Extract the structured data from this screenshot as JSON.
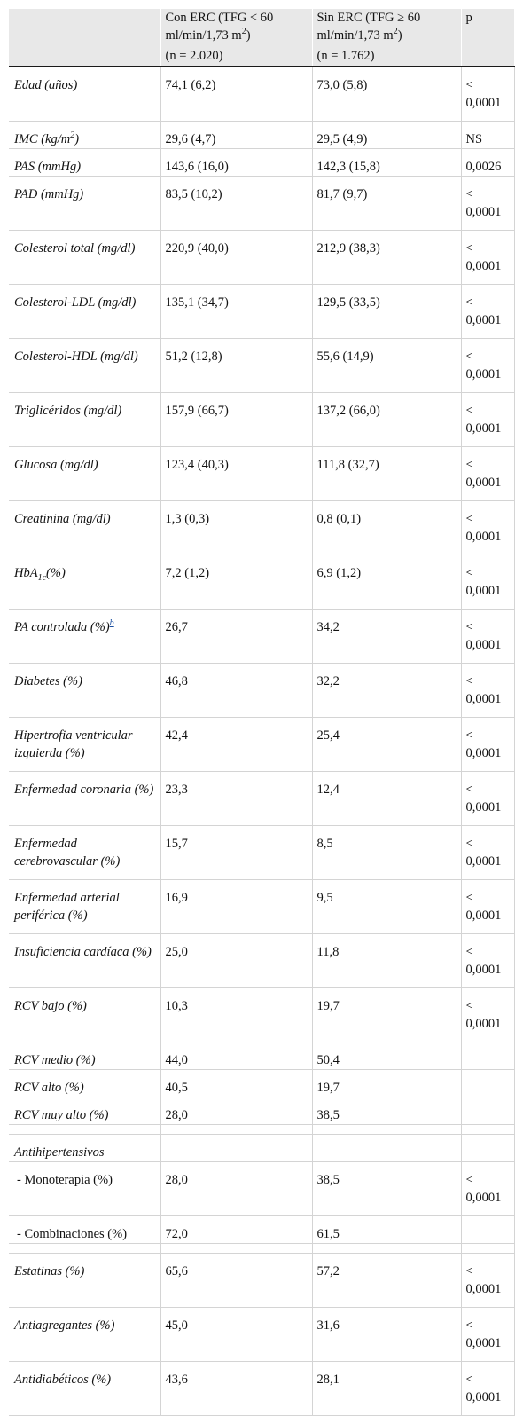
{
  "header": {
    "col1": "",
    "col2_line1": "Con ERC (TFG < 60 ml/min/1,73 m",
    "col2_sup": "2",
    "col2_line1_end": ")",
    "col2_n": "(n = 2.020)",
    "col3_line1": "Sin ERC (TFG ≥ 60 ml/min/1,73 m",
    "col3_sup": "2",
    "col3_line1_end": ")",
    "col3_n": "(n = 1.762)",
    "col4": "p"
  },
  "rows": [
    {
      "label": "Edad (años)",
      "a": "74,1 (6,2)",
      "b": "73,0 (5,8)",
      "p": "< 0,0001"
    },
    {
      "label": "IMC (kg/m",
      "label_sup": "2",
      "label_end": ")",
      "a": "29,6 (4,7)",
      "b": "29,5 (4,9)",
      "p": "NS"
    },
    {
      "label": "PAS (mmHg)",
      "a": "143,6 (16,0)",
      "b": "142,3 (15,8)",
      "p": "0,0026"
    },
    {
      "label": "PAD (mmHg)",
      "a": "83,5 (10,2)",
      "b": "81,7 (9,7)",
      "p": "< 0,0001"
    },
    {
      "label": "Colesterol total (mg/dl)",
      "a": "220,9 (40,0)",
      "b": "212,9 (38,3)",
      "p": "< 0,0001"
    },
    {
      "label": "Colesterol-LDL (mg/dl)",
      "a": "135,1 (34,7)",
      "b": "129,5 (33,5)",
      "p": "< 0,0001"
    },
    {
      "label": "Colesterol-HDL (mg/dl)",
      "a": "51,2 (12,8)",
      "b": "55,6 (14,9)",
      "p": "< 0,0001"
    },
    {
      "label": "Triglicéridos (mg/dl)",
      "a": "157,9 (66,7)",
      "b": "137,2 (66,0)",
      "p": "< 0,0001"
    },
    {
      "label": "Glucosa (mg/dl)",
      "a": "123,4 (40,3)",
      "b": "111,8 (32,7)",
      "p": "< 0,0001"
    },
    {
      "label": "Creatinina (mg/dl)",
      "a": "1,3 (0,3)",
      "b": "0,8 (0,1)",
      "p": "< 0,0001"
    },
    {
      "label": "HbA",
      "label_sub": "1c",
      "label_end": "(%)",
      "a": "7,2 (1,2)",
      "b": "6,9 (1,2)",
      "p": "< 0,0001"
    },
    {
      "label": "PA controlada (%)",
      "label_fn": "b",
      "a": "26,7",
      "b": "34,2",
      "p": "< 0,0001"
    },
    {
      "label": "Diabetes (%)",
      "a": "46,8",
      "b": "32,2",
      "p": "< 0,0001"
    },
    {
      "label": "Hipertrofia ventricular izquierda (%)",
      "a": "42,4",
      "b": "25,4",
      "p": "< 0,0001"
    },
    {
      "label": "Enfermedad coronaria (%)",
      "a": "23,3",
      "b": "12,4",
      "p": "< 0,0001"
    },
    {
      "label": "Enfermedad cerebrovascular (%)",
      "a": "15,7",
      "b": "8,5",
      "p": "< 0,0001"
    },
    {
      "label": "Enfermedad arterial periférica (%)",
      "a": "16,9",
      "b": "9,5",
      "p": "< 0,0001"
    },
    {
      "label": "Insuficiencia cardíaca (%)",
      "a": "25,0",
      "b": "11,8",
      "p": "< 0,0001"
    },
    {
      "label": "RCV bajo (%)",
      "a": "10,3",
      "b": "19,7",
      "p": "< 0,0001"
    },
    {
      "label": "RCV medio (%)",
      "a": "44,0",
      "b": "50,4",
      "p": ""
    },
    {
      "label": "RCV alto (%)",
      "a": "40,5",
      "b": "19,7",
      "p": ""
    },
    {
      "label": "RCV muy alto (%)",
      "a": "28,0",
      "b": "38,5",
      "p": ""
    },
    {
      "label": "Antihipertensivos",
      "a": "",
      "b": "",
      "p": ""
    },
    {
      "label": " - Monoterapia (%)",
      "a": "28,0",
      "b": "38,5",
      "p": "< 0,0001"
    },
    {
      "label": " - Combinaciones (%)",
      "a": "72,0",
      "b": "61,5",
      "p": ""
    },
    {
      "label": "Estatinas (%)",
      "a": "65,6",
      "b": "57,2",
      "p": "< 0,0001"
    },
    {
      "label": "Antiagregantes (%)",
      "a": "45,0",
      "b": "31,6",
      "p": "< 0,0001"
    },
    {
      "label": "Antidiabéticos (%)",
      "a": "43,6",
      "b": "28,1",
      "p": "< 0,0001"
    }
  ]
}
